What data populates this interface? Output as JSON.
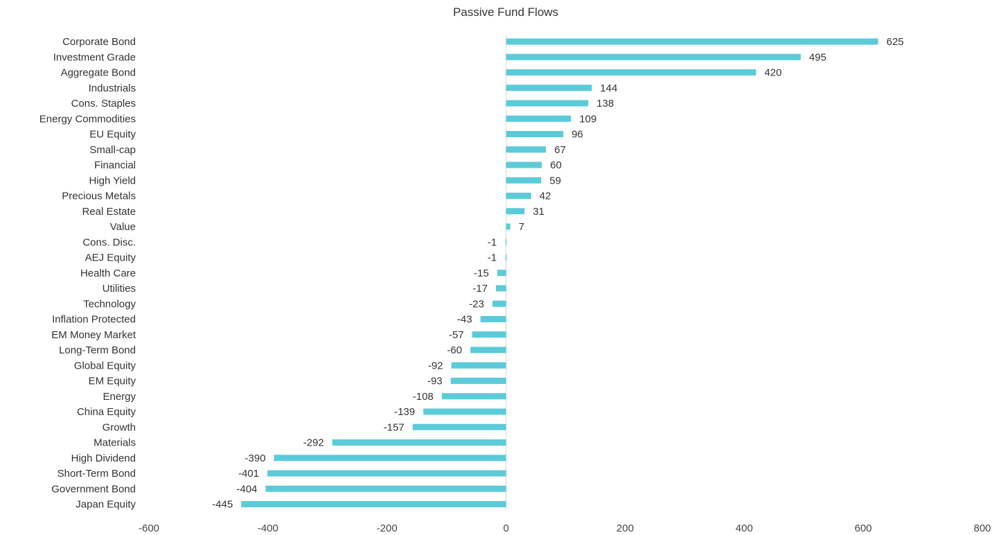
{
  "chart_data": {
    "type": "bar",
    "orientation": "horizontal",
    "title": "Passive Fund Flows",
    "xlabel": "",
    "ylabel": "",
    "xlim": [
      -600,
      800
    ],
    "x_ticks": [
      -600,
      -400,
      -200,
      0,
      200,
      400,
      600,
      800
    ],
    "x_tick_labels": [
      "-600",
      "-400",
      "-200",
      "0",
      "200",
      "400",
      "600",
      "800"
    ],
    "grid": false,
    "legend": "none",
    "bar_color": "#5bcbd9",
    "categories": [
      "Corporate Bond",
      "Investment Grade",
      "Aggregate Bond",
      "Industrials",
      "Cons. Staples",
      "Energy Commodities",
      "EU Equity",
      "Small-cap",
      "Financial",
      "High Yield",
      "Precious Metals",
      "Real Estate",
      "Value",
      "Cons. Disc.",
      "AEJ Equity",
      "Health Care",
      "Utilities",
      "Technology",
      "Inflation Protected",
      "EM Money Market",
      "Long-Term Bond",
      "Global Equity",
      "EM Equity",
      "Energy",
      "China Equity",
      "Growth",
      "Materials",
      "High Dividend",
      "Short-Term Bond",
      "Government Bond",
      "Japan Equity"
    ],
    "values": [
      625,
      495,
      420,
      144,
      138,
      109,
      96,
      67,
      60,
      59,
      42,
      31,
      7,
      -1,
      -1,
      -15,
      -17,
      -23,
      -43,
      -57,
      -60,
      -92,
      -93,
      -108,
      -139,
      -157,
      -292,
      -390,
      -401,
      -404,
      -445
    ],
    "value_labels": [
      "625",
      "495",
      "420",
      "144",
      "138",
      "109",
      "96",
      "67",
      "60",
      "59",
      "42",
      "31",
      "7",
      "-1",
      "-1",
      "-15",
      "-17",
      "-23",
      "-43",
      "-57",
      "-60",
      "-92",
      "-93",
      "-108",
      "-139",
      "-157",
      "-292",
      "-390",
      "-401",
      "-404",
      "-445"
    ]
  }
}
